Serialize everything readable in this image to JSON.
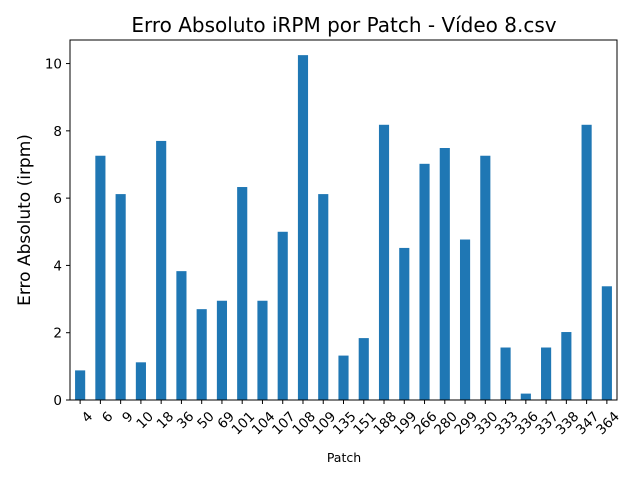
{
  "chart_data": {
    "type": "bar",
    "title": "Erro Absoluto iRPM por Patch - Vídeo 8.csv",
    "xlabel": "Patch",
    "ylabel": "Erro Absoluto (irpm)",
    "categories": [
      "4",
      "6",
      "9",
      "10",
      "18",
      "36",
      "50",
      "69",
      "101",
      "104",
      "107",
      "108",
      "109",
      "135",
      "151",
      "188",
      "199",
      "266",
      "280",
      "299",
      "330",
      "333",
      "336",
      "337",
      "338",
      "347",
      "364"
    ],
    "values": [
      0.88,
      7.26,
      6.12,
      1.12,
      7.7,
      3.83,
      2.7,
      2.95,
      6.33,
      2.95,
      5.0,
      10.25,
      6.12,
      1.32,
      1.84,
      8.18,
      4.52,
      7.02,
      7.49,
      4.77,
      7.26,
      1.56,
      0.19,
      1.56,
      2.02,
      8.18,
      3.38
    ],
    "ylim": [
      0,
      10.7
    ],
    "yticks": [
      0,
      2,
      4,
      6,
      8,
      10
    ],
    "grid": false,
    "legend": "none",
    "bar_color": "#1f77b4"
  }
}
